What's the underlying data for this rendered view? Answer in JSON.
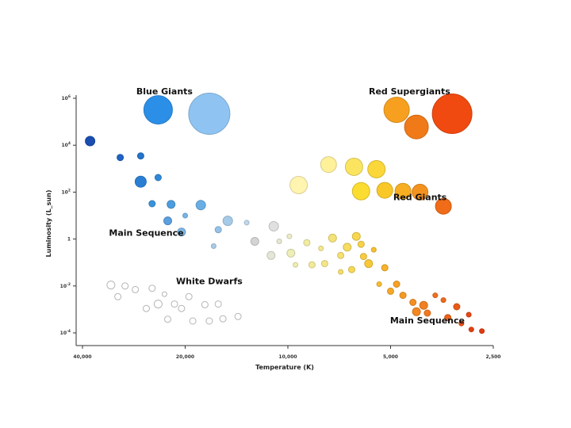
{
  "chart_data": {
    "type": "scatter",
    "title": "",
    "xlabel": "Temperature (K)",
    "ylabel": "Luminosity (L_sun)",
    "x_ticks": [
      "40,000",
      "20,000",
      "10,000",
      "5,000",
      "2,500"
    ],
    "y_ticks": [
      "10^6",
      "10^4",
      "10^2",
      "1",
      "10^-2",
      "10^-4"
    ],
    "x_scale": "log, reversed",
    "y_scale": "log",
    "xlim": [
      40000,
      2500
    ],
    "ylim": [
      0.0001,
      1000000
    ],
    "grid": false,
    "annotations": [
      {
        "text": "Blue Giants",
        "x": 23000,
        "y": 1500000
      },
      {
        "text": "Red Supergiants",
        "x": 4400,
        "y": 1500000
      },
      {
        "text": "Main Sequence",
        "x": 26000,
        "y": 1.4
      },
      {
        "text": "White Dwarfs",
        "x": 17000,
        "y": 0.012
      },
      {
        "text": "Red Giants",
        "x": 4100,
        "y": 45
      },
      {
        "text": "Main Sequence",
        "x": 3900,
        "y": 0.00025
      }
    ],
    "series": [
      {
        "group": "Blue Giants",
        "points": [
          {
            "x": 24000,
            "y": 320000,
            "size": 18,
            "color": "#2b8fe8"
          },
          {
            "x": 17000,
            "y": 220000,
            "size": 26,
            "color": "#8fc4f2"
          }
        ]
      },
      {
        "group": "Red Supergiants",
        "points": [
          {
            "x": 4800,
            "y": 320000,
            "size": 16,
            "color": "#f7a020"
          },
          {
            "x": 3300,
            "y": 220000,
            "size": 25,
            "color": "#f04a10"
          },
          {
            "x": 4200,
            "y": 60000,
            "size": 15,
            "color": "#f07a18"
          }
        ]
      },
      {
        "group": "Red Giants",
        "points": [
          {
            "x": 7600,
            "y": 1500,
            "size": 10,
            "color": "#fff09a"
          },
          {
            "x": 6400,
            "y": 1200,
            "size": 11,
            "color": "#fbe460"
          },
          {
            "x": 5500,
            "y": 950,
            "size": 11,
            "color": "#fbd73a"
          },
          {
            "x": 9300,
            "y": 200,
            "size": 11,
            "color": "#fff4b0"
          },
          {
            "x": 6100,
            "y": 110,
            "size": 11,
            "color": "#fbdc30"
          },
          {
            "x": 5200,
            "y": 120,
            "size": 10,
            "color": "#f9c828"
          },
          {
            "x": 4600,
            "y": 110,
            "size": 10,
            "color": "#f7ae20"
          },
          {
            "x": 4100,
            "y": 100,
            "size": 10,
            "color": "#f49220"
          },
          {
            "x": 3500,
            "y": 25,
            "size": 10,
            "color": "#f06c18"
          }
        ]
      },
      {
        "group": "Main Sequence",
        "points": [
          {
            "x": 38000,
            "y": 15000,
            "size": 6,
            "color": "#1a4db0"
          },
          {
            "x": 31000,
            "y": 3000,
            "size": 4,
            "color": "#1f63c4"
          },
          {
            "x": 27000,
            "y": 3500,
            "size": 4,
            "color": "#2474cc"
          },
          {
            "x": 27000,
            "y": 280,
            "size": 7,
            "color": "#2a7fd4"
          },
          {
            "x": 24000,
            "y": 420,
            "size": 4,
            "color": "#3088d6"
          },
          {
            "x": 25000,
            "y": 32,
            "size": 4,
            "color": "#3a92da"
          },
          {
            "x": 22000,
            "y": 30,
            "size": 5,
            "color": "#4c9ee0"
          },
          {
            "x": 18000,
            "y": 28,
            "size": 6,
            "color": "#6aaee4"
          },
          {
            "x": 22500,
            "y": 6,
            "size": 5,
            "color": "#5a9fde"
          },
          {
            "x": 20000,
            "y": 10,
            "size": 3,
            "color": "#7ab4e6"
          },
          {
            "x": 20500,
            "y": 2,
            "size": 5,
            "color": "#7fb6e4"
          },
          {
            "x": 16000,
            "y": 2.5,
            "size": 4,
            "color": "#95c2e8"
          },
          {
            "x": 15000,
            "y": 6,
            "size": 6,
            "color": "#a5cbe9"
          },
          {
            "x": 13200,
            "y": 5,
            "size": 3,
            "color": "#c0d8ec"
          },
          {
            "x": 16500,
            "y": 0.5,
            "size": 3,
            "color": "#a9cbe6"
          },
          {
            "x": 12500,
            "y": 0.8,
            "size": 5,
            "color": "#d4d4d4"
          },
          {
            "x": 11000,
            "y": 3.5,
            "size": 6,
            "color": "#e0e0e0"
          },
          {
            "x": 11200,
            "y": 0.2,
            "size": 5,
            "color": "#e6e6d8"
          },
          {
            "x": 10600,
            "y": 0.8,
            "size": 3,
            "color": "#e8e8d0"
          },
          {
            "x": 9900,
            "y": 1.3,
            "size": 3,
            "color": "#ececc8"
          },
          {
            "x": 9800,
            "y": 0.25,
            "size": 5,
            "color": "#eeeeb8"
          },
          {
            "x": 9500,
            "y": 0.08,
            "size": 3,
            "color": "#f0eeb0"
          },
          {
            "x": 8800,
            "y": 0.7,
            "size": 4,
            "color": "#f2eca0"
          },
          {
            "x": 8500,
            "y": 0.08,
            "size": 4,
            "color": "#f2ea98"
          },
          {
            "x": 8000,
            "y": 0.4,
            "size": 3,
            "color": "#f4e890"
          },
          {
            "x": 7800,
            "y": 0.09,
            "size": 4,
            "color": "#f4e688"
          },
          {
            "x": 7400,
            "y": 1.1,
            "size": 5,
            "color": "#f4e278"
          },
          {
            "x": 7000,
            "y": 0.2,
            "size": 4,
            "color": "#f6e070"
          },
          {
            "x": 7000,
            "y": 0.04,
            "size": 3,
            "color": "#f6de68"
          },
          {
            "x": 6700,
            "y": 0.45,
            "size": 5,
            "color": "#f6dc60"
          },
          {
            "x": 6500,
            "y": 0.05,
            "size": 4,
            "color": "#f6d858"
          },
          {
            "x": 6300,
            "y": 1.3,
            "size": 5,
            "color": "#f8d650"
          },
          {
            "x": 6100,
            "y": 0.6,
            "size": 4,
            "color": "#f8d248"
          },
          {
            "x": 6000,
            "y": 0.18,
            "size": 4,
            "color": "#f8cc40"
          },
          {
            "x": 5800,
            "y": 0.09,
            "size": 5,
            "color": "#f8c838"
          },
          {
            "x": 5600,
            "y": 0.35,
            "size": 3,
            "color": "#f8c030"
          },
          {
            "x": 5400,
            "y": 0.012,
            "size": 3,
            "color": "#f8bc30"
          },
          {
            "x": 5200,
            "y": 0.06,
            "size": 4,
            "color": "#f8b22c"
          },
          {
            "x": 5000,
            "y": 0.006,
            "size": 4,
            "color": "#f6a828"
          },
          {
            "x": 4800,
            "y": 0.012,
            "size": 4,
            "color": "#f6a028"
          },
          {
            "x": 4600,
            "y": 0.004,
            "size": 4,
            "color": "#f49a24"
          },
          {
            "x": 4300,
            "y": 0.002,
            "size": 4,
            "color": "#f49024"
          },
          {
            "x": 4200,
            "y": 0.0008,
            "size": 5,
            "color": "#f48820"
          },
          {
            "x": 4000,
            "y": 0.0015,
            "size": 5,
            "color": "#f28020"
          },
          {
            "x": 3900,
            "y": 0.0007,
            "size": 4,
            "color": "#f07820"
          },
          {
            "x": 3700,
            "y": 0.004,
            "size": 3,
            "color": "#f07020"
          },
          {
            "x": 3500,
            "y": 0.0025,
            "size": 3,
            "color": "#ee6a1c"
          },
          {
            "x": 3400,
            "y": 0.00045,
            "size": 4,
            "color": "#ec6218"
          },
          {
            "x": 3200,
            "y": 0.0013,
            "size": 4,
            "color": "#ea5a18"
          },
          {
            "x": 3100,
            "y": 0.00025,
            "size": 3,
            "color": "#e84e14"
          },
          {
            "x": 2950,
            "y": 0.0006,
            "size": 3,
            "color": "#e64812"
          },
          {
            "x": 2900,
            "y": 0.00014,
            "size": 3,
            "color": "#e44010"
          },
          {
            "x": 2700,
            "y": 0.00012,
            "size": 3,
            "color": "#e03a10"
          }
        ]
      },
      {
        "group": "White Dwarfs",
        "points": [
          {
            "x": 33000,
            "y": 0.011,
            "size": 5,
            "color": "#ffffff"
          },
          {
            "x": 30000,
            "y": 0.01,
            "size": 4,
            "color": "#ffffff"
          },
          {
            "x": 28000,
            "y": 0.007,
            "size": 4,
            "color": "#ffffff"
          },
          {
            "x": 31500,
            "y": 0.0035,
            "size": 4,
            "color": "#ffffff"
          },
          {
            "x": 25000,
            "y": 0.008,
            "size": 4,
            "color": "#ffffff"
          },
          {
            "x": 23000,
            "y": 0.0045,
            "size": 3,
            "color": "#ffffff"
          },
          {
            "x": 24000,
            "y": 0.0017,
            "size": 5,
            "color": "#ffffff"
          },
          {
            "x": 26000,
            "y": 0.0011,
            "size": 4,
            "color": "#ffffff"
          },
          {
            "x": 21500,
            "y": 0.0017,
            "size": 4,
            "color": "#ffffff"
          },
          {
            "x": 20500,
            "y": 0.0011,
            "size": 4,
            "color": "#ffffff"
          },
          {
            "x": 19500,
            "y": 0.0035,
            "size": 4,
            "color": "#ffffff"
          },
          {
            "x": 17500,
            "y": 0.0016,
            "size": 4,
            "color": "#ffffff"
          },
          {
            "x": 16000,
            "y": 0.0017,
            "size": 4,
            "color": "#ffffff"
          },
          {
            "x": 22500,
            "y": 0.00038,
            "size": 4,
            "color": "#ffffff"
          },
          {
            "x": 19000,
            "y": 0.00032,
            "size": 4,
            "color": "#ffffff"
          },
          {
            "x": 17000,
            "y": 0.00032,
            "size": 4,
            "color": "#ffffff"
          },
          {
            "x": 15500,
            "y": 0.0004,
            "size": 4,
            "color": "#ffffff"
          },
          {
            "x": 14000,
            "y": 0.0005,
            "size": 4,
            "color": "#ffffff"
          }
        ]
      }
    ]
  }
}
